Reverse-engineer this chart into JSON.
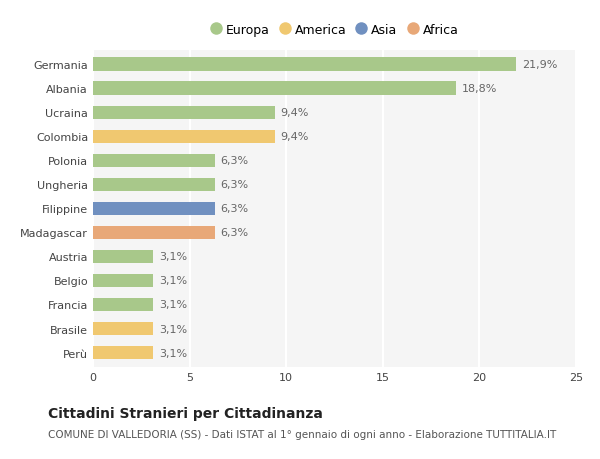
{
  "categories": [
    "Germania",
    "Albania",
    "Ucraina",
    "Colombia",
    "Polonia",
    "Ungheria",
    "Filippine",
    "Madagascar",
    "Austria",
    "Belgio",
    "Francia",
    "Brasile",
    "Perù"
  ],
  "values": [
    21.9,
    18.8,
    9.4,
    9.4,
    6.3,
    6.3,
    6.3,
    6.3,
    3.1,
    3.1,
    3.1,
    3.1,
    3.1
  ],
  "continents": [
    "Europa",
    "Europa",
    "Europa",
    "America",
    "Europa",
    "Europa",
    "Asia",
    "Africa",
    "Europa",
    "Europa",
    "Europa",
    "America",
    "America"
  ],
  "labels": [
    "21,9%",
    "18,8%",
    "9,4%",
    "9,4%",
    "6,3%",
    "6,3%",
    "6,3%",
    "6,3%",
    "3,1%",
    "3,1%",
    "3,1%",
    "3,1%",
    "3,1%"
  ],
  "colors": {
    "Europa": "#a8c88a",
    "America": "#f0c870",
    "Asia": "#7090c0",
    "Africa": "#e8a878"
  },
  "legend_order": [
    "Europa",
    "America",
    "Asia",
    "Africa"
  ],
  "xlim": [
    0,
    25
  ],
  "xticks": [
    0,
    5,
    10,
    15,
    20,
    25
  ],
  "title": "Cittadini Stranieri per Cittadinanza",
  "subtitle": "COMUNE DI VALLEDORIA (SS) - Dati ISTAT al 1° gennaio di ogni anno - Elaborazione TUTTITALIA.IT",
  "bg_color": "#ffffff",
  "plot_bg_color": "#f5f5f5",
  "grid_color": "#ffffff",
  "bar_height": 0.55,
  "title_fontsize": 10,
  "subtitle_fontsize": 7.5,
  "label_fontsize": 8,
  "tick_fontsize": 8,
  "legend_fontsize": 9
}
